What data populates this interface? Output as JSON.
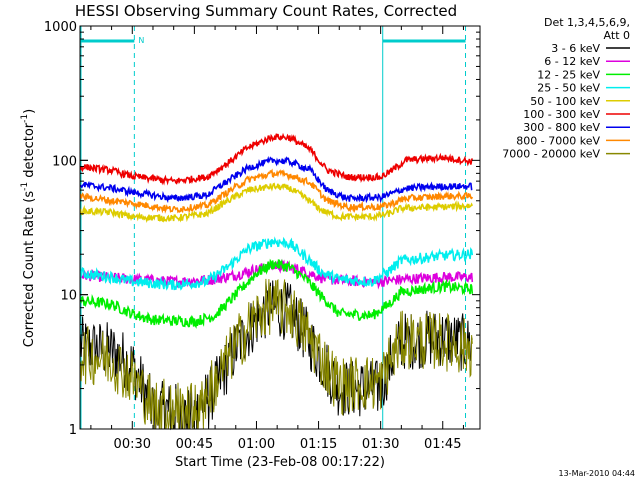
{
  "chart_data": {
    "type": "line",
    "title": "HESSI Observing Summary Count Rates, Corrected",
    "xlabel": "Start Time (23-Feb-08 00:17:22)",
    "ylabel": "Corrected Count Rate (s",
    "ylabel_sup1": "-1",
    "ylabel_mid": " detector",
    "ylabel_sup2": "-1",
    "ylabel_end": ")",
    "y_scale": "log",
    "ylim": [
      1,
      1000
    ],
    "xlim_minutes": [
      17.37,
      114.0
    ],
    "x_ticks": [
      "00:30",
      "00:45",
      "01:00",
      "01:15",
      "01:30",
      "01:45"
    ],
    "y_ticks": [
      "1",
      "10",
      "100",
      "1000"
    ],
    "legend_header": [
      "Det 1,3,4,5,6,9,",
      "Att 0"
    ],
    "legend_placement": "right",
    "footer": "13-Mar-2010 04:44",
    "flag_label": "N",
    "night_boundaries_minutes": [
      30.5,
      90.5
    ],
    "saa_dashed_minutes": [
      30.5,
      110.5
    ],
    "series": [
      {
        "name": "3 - 6 keV",
        "color": "#000000",
        "key": [
          [
            17.5,
            4.2
          ],
          [
            25,
            3.8
          ],
          [
            30,
            3.0
          ],
          [
            35,
            1.4
          ],
          [
            45,
            1.3
          ],
          [
            50,
            2.0
          ],
          [
            55,
            4.0
          ],
          [
            60,
            6.5
          ],
          [
            63,
            8.0
          ],
          [
            68,
            7.5
          ],
          [
            72,
            5.0
          ],
          [
            77,
            2.8
          ],
          [
            80,
            2.0
          ],
          [
            85,
            2.0
          ],
          [
            90,
            2.0
          ],
          [
            92,
            3.0
          ],
          [
            95,
            4.5
          ],
          [
            105,
            4.8
          ],
          [
            112,
            4.2
          ]
        ]
      },
      {
        "name": "6 - 12 keV",
        "color": "#dd00dd",
        "key": [
          [
            17.5,
            14
          ],
          [
            30,
            13
          ],
          [
            40,
            12.5
          ],
          [
            50,
            13
          ],
          [
            55,
            14
          ],
          [
            62,
            16
          ],
          [
            65,
            16.5
          ],
          [
            70,
            15.5
          ],
          [
            77,
            13
          ],
          [
            85,
            12.5
          ],
          [
            90,
            12.5
          ],
          [
            95,
            13
          ],
          [
            105,
            13.5
          ],
          [
            112,
            13.5
          ]
        ]
      },
      {
        "name": "12 - 25 keV",
        "color": "#00ee00",
        "key": [
          [
            17.5,
            9.0
          ],
          [
            25,
            8.5
          ],
          [
            30,
            7.2
          ],
          [
            35,
            6.5
          ],
          [
            45,
            6.3
          ],
          [
            50,
            7.0
          ],
          [
            55,
            10
          ],
          [
            60,
            14.5
          ],
          [
            64,
            17
          ],
          [
            68,
            16
          ],
          [
            72,
            13
          ],
          [
            76,
            9.5
          ],
          [
            80,
            7.2
          ],
          [
            88,
            7.0
          ],
          [
            92,
            8.5
          ],
          [
            95,
            10.5
          ],
          [
            105,
            11.5
          ],
          [
            112,
            11
          ]
        ]
      },
      {
        "name": "25 - 50 keV",
        "color": "#00eeee",
        "key": [
          [
            17.5,
            14.5
          ],
          [
            25,
            13.5
          ],
          [
            30,
            12.5
          ],
          [
            40,
            11.8
          ],
          [
            48,
            12.5
          ],
          [
            53,
            16
          ],
          [
            58,
            22
          ],
          [
            64,
            25
          ],
          [
            68,
            24
          ],
          [
            72,
            19
          ],
          [
            76,
            14.5
          ],
          [
            80,
            13
          ],
          [
            88,
            12.5
          ],
          [
            92,
            15
          ],
          [
            95,
            18
          ],
          [
            105,
            19.5
          ],
          [
            112,
            20
          ]
        ]
      },
      {
        "name": "50 - 100 keV",
        "color": "#ddcc00",
        "key": [
          [
            17.5,
            42
          ],
          [
            25,
            41
          ],
          [
            30,
            38
          ],
          [
            40,
            37
          ],
          [
            48,
            40
          ],
          [
            53,
            50
          ],
          [
            58,
            60
          ],
          [
            64,
            64
          ],
          [
            68,
            62
          ],
          [
            72,
            52
          ],
          [
            76,
            42
          ],
          [
            80,
            38
          ],
          [
            88,
            38
          ],
          [
            92,
            40
          ],
          [
            95,
            44
          ],
          [
            105,
            45
          ],
          [
            112,
            46
          ]
        ]
      },
      {
        "name": "100 - 300 keV",
        "color": "#ee0000",
        "key": [
          [
            17.5,
            90
          ],
          [
            25,
            84
          ],
          [
            30,
            76
          ],
          [
            40,
            70
          ],
          [
            48,
            75
          ],
          [
            53,
            95
          ],
          [
            58,
            125
          ],
          [
            64,
            150
          ],
          [
            68,
            148
          ],
          [
            73,
            120
          ],
          [
            77,
            85
          ],
          [
            82,
            75
          ],
          [
            90,
            75
          ],
          [
            93,
            85
          ],
          [
            96,
            100
          ],
          [
            105,
            105
          ],
          [
            112,
            98
          ]
        ]
      },
      {
        "name": "300 - 800 keV",
        "color": "#0000ee",
        "key": [
          [
            17.5,
            66
          ],
          [
            25,
            62
          ],
          [
            30,
            58
          ],
          [
            40,
            52
          ],
          [
            48,
            55
          ],
          [
            53,
            70
          ],
          [
            58,
            88
          ],
          [
            64,
            100
          ],
          [
            68,
            98
          ],
          [
            73,
            85
          ],
          [
            77,
            60
          ],
          [
            82,
            52
          ],
          [
            90,
            53
          ],
          [
            93,
            57
          ],
          [
            96,
            62
          ],
          [
            105,
            64
          ],
          [
            112,
            64
          ]
        ]
      },
      {
        "name": "800 - 7000 keV",
        "color": "#ff8800",
        "key": [
          [
            17.5,
            54
          ],
          [
            25,
            50
          ],
          [
            30,
            48
          ],
          [
            40,
            43
          ],
          [
            48,
            46
          ],
          [
            53,
            58
          ],
          [
            58,
            72
          ],
          [
            64,
            80
          ],
          [
            68,
            78
          ],
          [
            73,
            68
          ],
          [
            77,
            50
          ],
          [
            82,
            45
          ],
          [
            90,
            45
          ],
          [
            93,
            48
          ],
          [
            96,
            52
          ],
          [
            105,
            54
          ],
          [
            112,
            54
          ]
        ]
      },
      {
        "name": "7000 - 20000 keV",
        "color": "#888800",
        "key": [
          [
            17.5,
            3.6
          ],
          [
            25,
            3.3
          ],
          [
            30,
            2.4
          ],
          [
            35,
            1.5
          ],
          [
            45,
            1.4
          ],
          [
            50,
            2.2
          ],
          [
            55,
            4.2
          ],
          [
            60,
            6.8
          ],
          [
            63,
            8.3
          ],
          [
            68,
            7.8
          ],
          [
            72,
            5.2
          ],
          [
            77,
            2.9
          ],
          [
            80,
            2.1
          ],
          [
            85,
            2.2
          ],
          [
            90,
            2.2
          ],
          [
            92,
            3.1
          ],
          [
            95,
            4.6
          ],
          [
            105,
            4.5
          ],
          [
            112,
            4.0
          ]
        ]
      }
    ]
  }
}
